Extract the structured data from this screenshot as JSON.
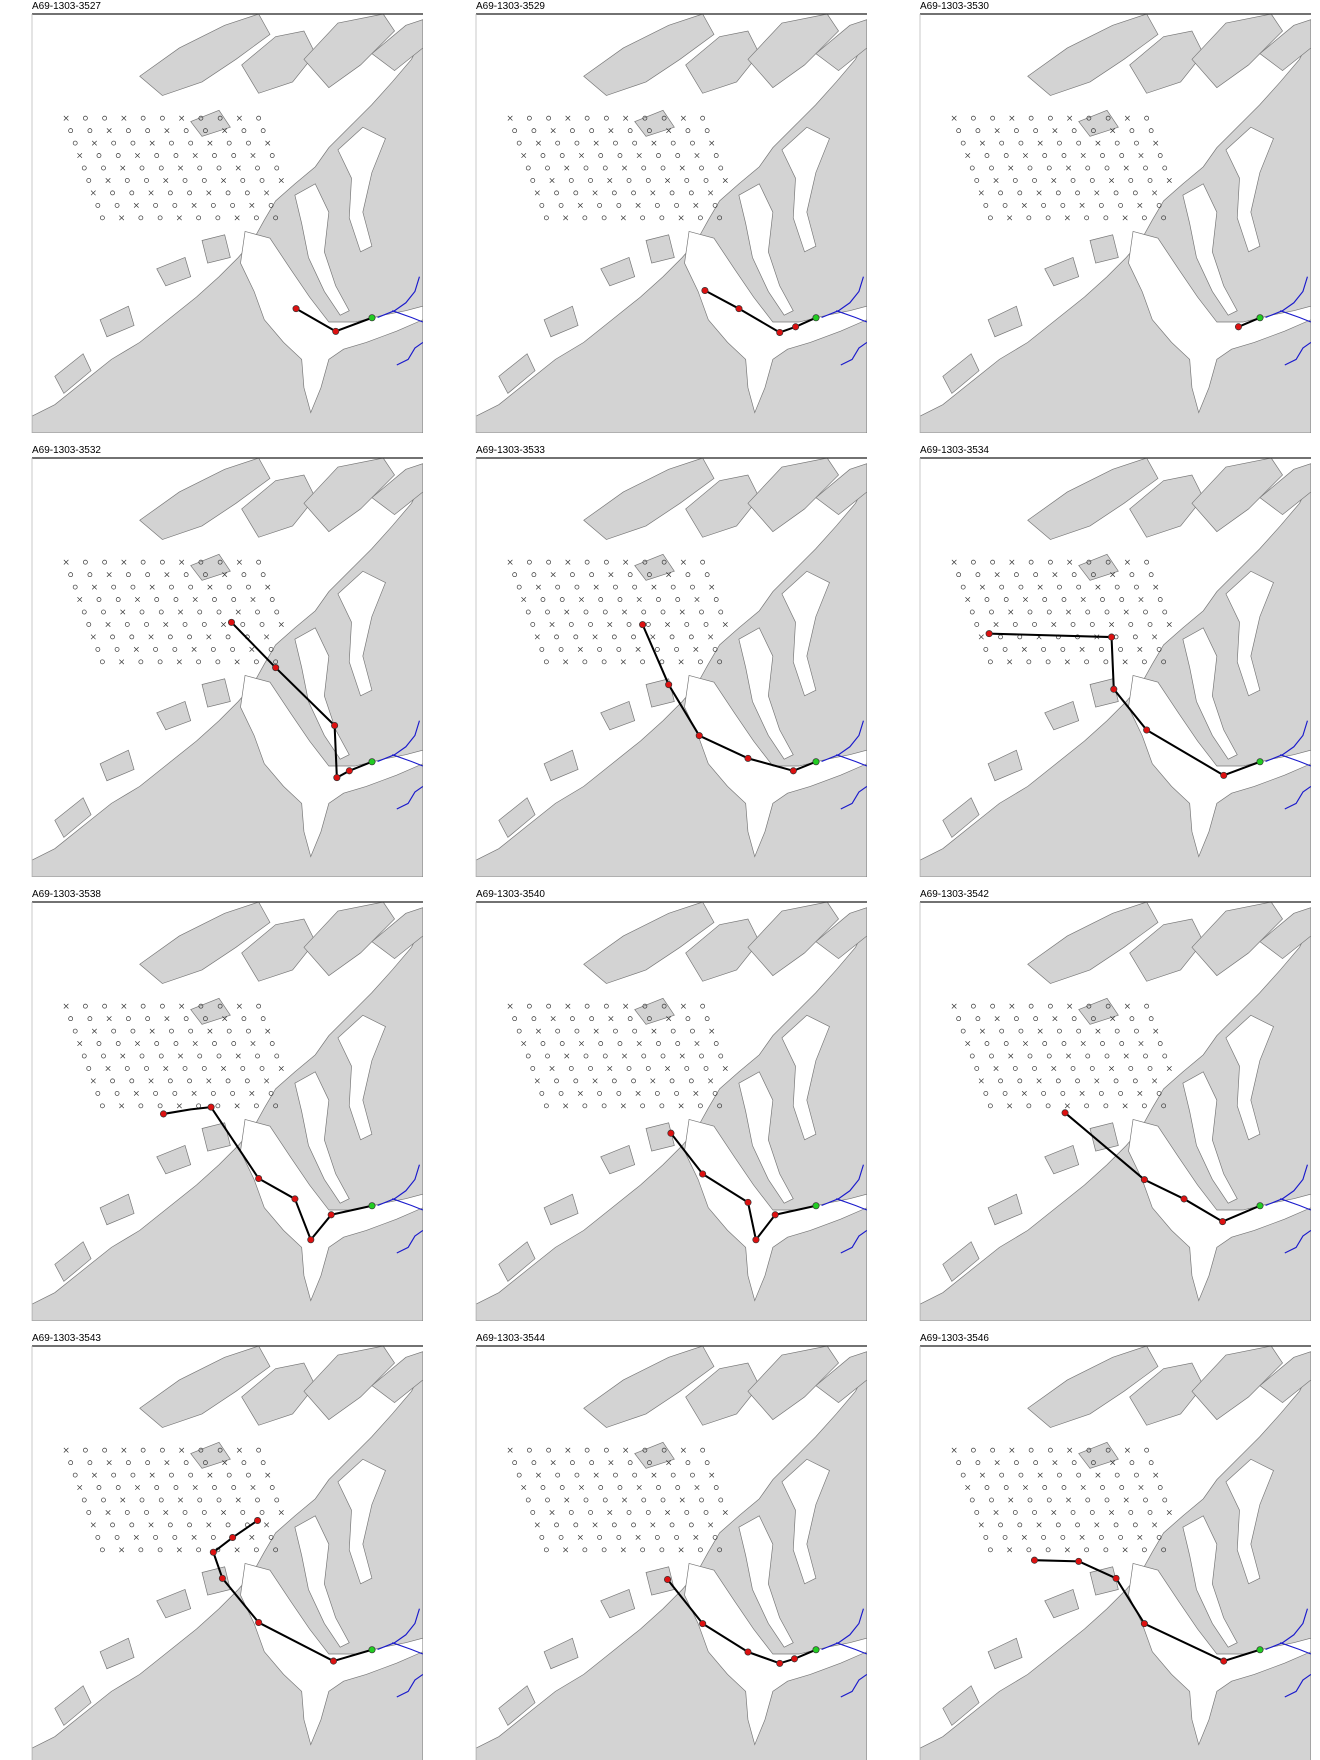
{
  "panels": [
    {
      "title": "A69-1303-3527"
    },
    {
      "title": "A69-1303-3529"
    },
    {
      "title": "A69-1303-3530"
    },
    {
      "title": "A69-1303-3532"
    },
    {
      "title": "A69-1303-3533"
    },
    {
      "title": "A69-1303-3534"
    },
    {
      "title": "A69-1303-3538"
    },
    {
      "title": "A69-1303-3540"
    },
    {
      "title": "A69-1303-3542"
    },
    {
      "title": "A69-1303-3543"
    },
    {
      "title": "A69-1303-3544"
    },
    {
      "title": "A69-1303-3546"
    }
  ]
}
